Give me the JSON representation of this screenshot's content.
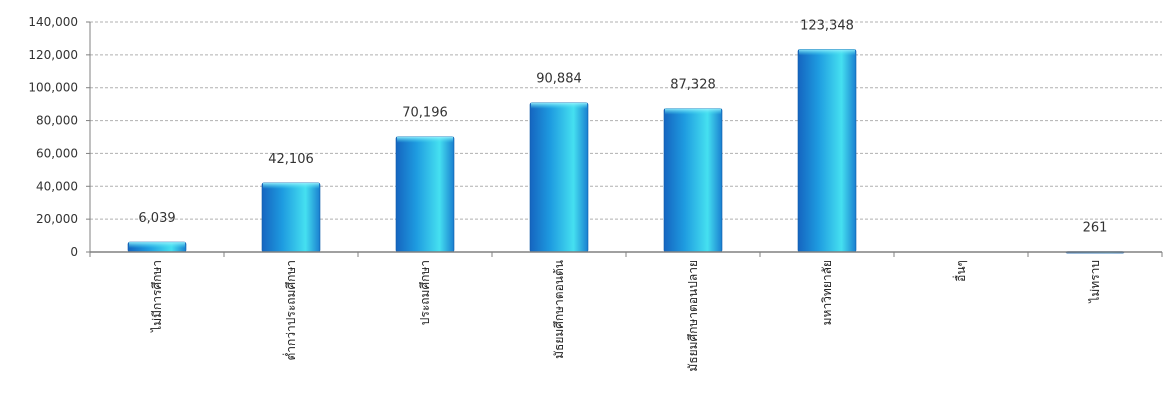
{
  "chart_data": {
    "type": "bar",
    "categories": [
      "ไม่มีการศึกษา",
      "ต่ำกว่าประถมศึกษา",
      "ประถมศึกษา",
      "มัธยมศึกษาตอนต้น",
      "มัธยมศึกษาตอนปลาย",
      "มหาวิทยาลัย",
      "อื่นๆ",
      "ไม่ทราบ"
    ],
    "values": [
      6039,
      42106,
      70196,
      90884,
      87328,
      123348,
      0,
      261
    ],
    "data_labels": [
      "6,039",
      "42,106",
      "70,196",
      "90,884",
      "87,328",
      "123,348",
      "",
      "261"
    ],
    "ylim": [
      0,
      140000
    ],
    "yticks": [
      0,
      20000,
      40000,
      60000,
      80000,
      100000,
      120000,
      140000
    ],
    "ytick_labels": [
      "0",
      "20,000",
      "40,000",
      "60,000",
      "80,000",
      "100,000",
      "120,000",
      "140,000"
    ],
    "title": "",
    "xlabel": "",
    "ylabel": "",
    "grid": true,
    "legend": false,
    "colors": {
      "bar_dark": "#1565c0",
      "bar_mid": "#1e9be0",
      "bar_light": "#45e0f0",
      "grid": "#b0b0b0",
      "axis": "#808080"
    }
  }
}
